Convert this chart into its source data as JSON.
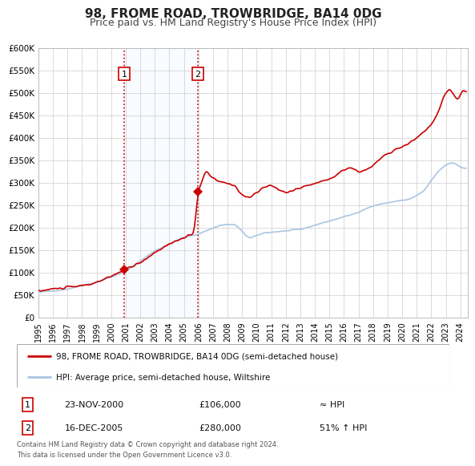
{
  "title": "98, FROME ROAD, TROWBRIDGE, BA14 0DG",
  "subtitle": "Price paid vs. HM Land Registry's House Price Index (HPI)",
  "title_fontsize": 11,
  "subtitle_fontsize": 9,
  "background_color": "#ffffff",
  "plot_background": "#ffffff",
  "grid_color": "#cccccc",
  "hpi_line_color": "#aac4e0",
  "price_line_color": "#cc0000",
  "shade_color": "#ddeeff",
  "dashed_line_color": "#cc0000",
  "point1_x": 2000.9,
  "point1_y": 106000,
  "point2_x": 2005.96,
  "point2_y": 280000,
  "label1_text": "1",
  "label2_text": "2",
  "sale1_date": "23-NOV-2000",
  "sale1_price": "£106,000",
  "sale1_vs_hpi": "≈ HPI",
  "sale2_date": "16-DEC-2005",
  "sale2_price": "£280,000",
  "sale2_vs_hpi": "51% ↑ HPI",
  "legend_line1": "98, FROME ROAD, TROWBRIDGE, BA14 0DG (semi-detached house)",
  "legend_line2": "HPI: Average price, semi-detached house, Wiltshire",
  "footer": "Contains HM Land Registry data © Crown copyright and database right 2024.\nThis data is licensed under the Open Government Licence v3.0.",
  "ylim": [
    0,
    600000
  ],
  "yticks": [
    0,
    50000,
    100000,
    150000,
    200000,
    250000,
    300000,
    350000,
    400000,
    450000,
    500000,
    550000,
    600000
  ],
  "xlim_start": 1995.0,
  "xlim_end": 2024.5
}
